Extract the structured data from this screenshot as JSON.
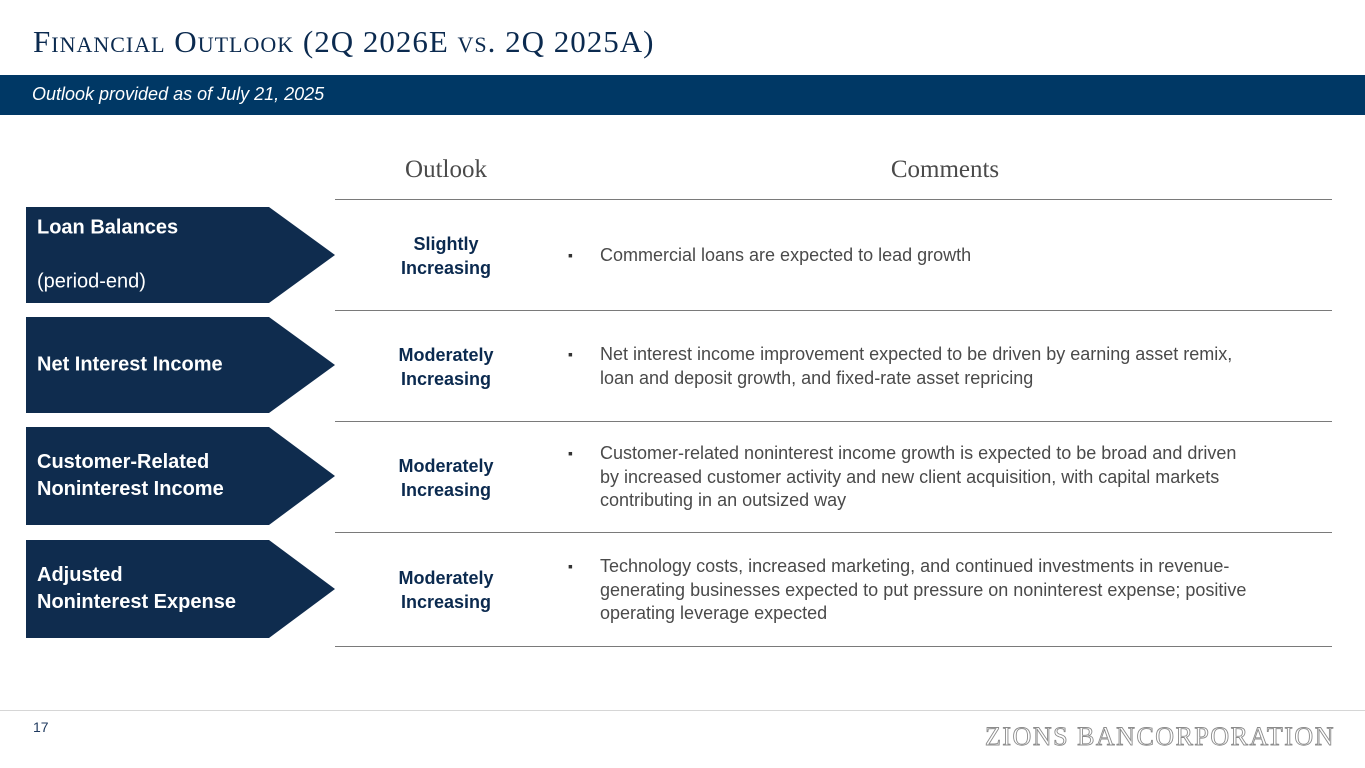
{
  "header": {
    "title": "Financial Outlook (2Q 2026E vs. 2Q 2025A)",
    "subtitle": "Outlook provided as of July 21, 2025"
  },
  "table": {
    "col_outlook": "Outlook",
    "col_comments": "Comments",
    "rows": [
      {
        "label": "Loan Balances",
        "sublabel": "(period-end)",
        "outlook": "Slightly\nIncreasing",
        "comment": "Commercial loans are expected to lead growth"
      },
      {
        "label": "Net Interest Income",
        "sublabel": "",
        "outlook": "Moderately\nIncreasing",
        "comment": "Net interest income improvement expected to be driven by earning asset remix,\nloan and deposit growth, and fixed-rate asset repricing"
      },
      {
        "label": "Customer-Related\nNoninterest Income",
        "sublabel": "",
        "outlook": "Moderately\nIncreasing",
        "comment": "Customer-related noninterest income growth is expected to be broad and driven\nby increased customer activity and new client acquisition, with capital markets\ncontributing in an outsized way"
      },
      {
        "label": "Adjusted\nNoninterest Expense",
        "sublabel": "",
        "outlook": "Moderately\nIncreasing",
        "comment": "Technology costs, increased marketing, and continued investments in revenue-\ngenerating businesses expected to put pressure on noninterest expense; positive\noperating leverage expected"
      }
    ],
    "bullet_glyph": "▪"
  },
  "footer": {
    "page_number": "17",
    "logo_text": "ZIONS BANCORPORATION"
  },
  "colors": {
    "navy": "#0f2c4e",
    "band": "#003865",
    "text_gray": "#4a4a4a"
  }
}
